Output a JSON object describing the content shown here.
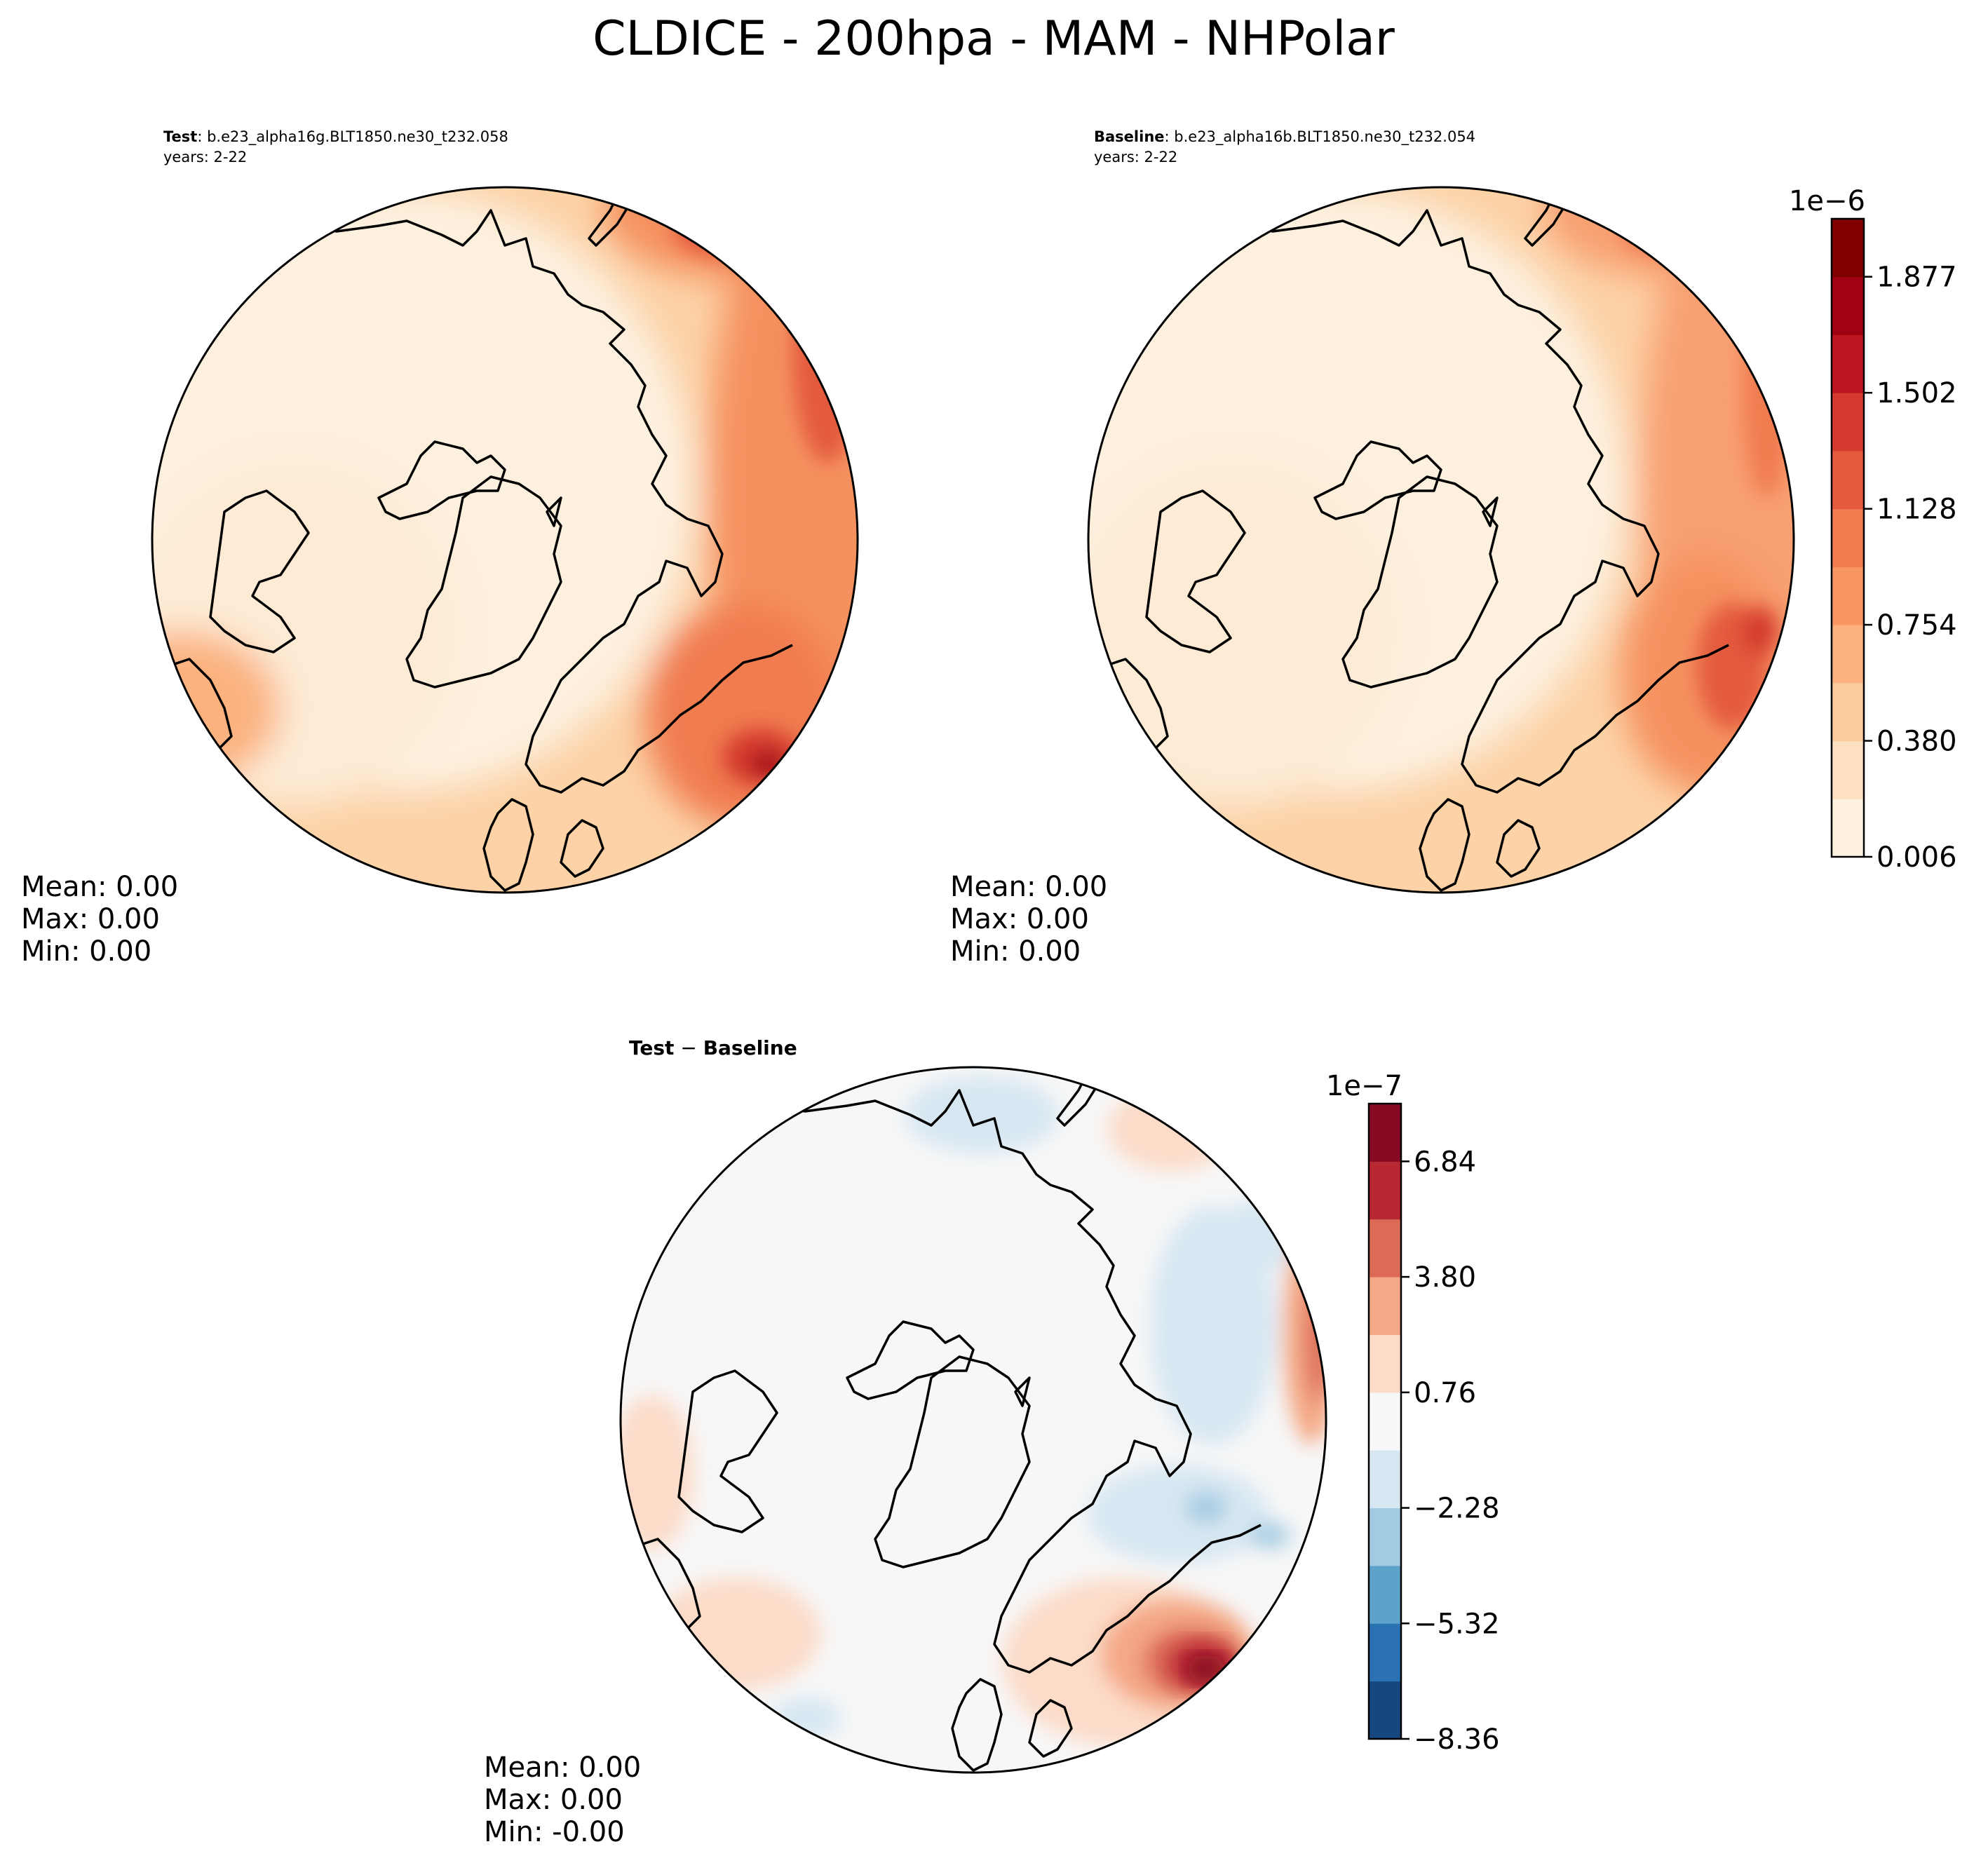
{
  "title": "CLDICE - 200hpa - MAM - NHPolar",
  "panels": [
    {
      "id": "test",
      "label_bold": "Test",
      "label_rest": ": b.e23_alpha16g.BLT1850.ne30_t232.058",
      "years": "years: 2-22",
      "stats": {
        "mean": "Mean:  0.00",
        "max": "Max:  0.00",
        "min": "Min:  0.00"
      }
    },
    {
      "id": "baseline",
      "label_bold": "Baseline",
      "label_rest": ": b.e23_alpha16b.BLT1850.ne30_t232.054",
      "years": "years: 2-22",
      "stats": {
        "mean": "Mean:  0.00",
        "max": "Max:  0.00",
        "min": "Min:  0.00"
      }
    },
    {
      "id": "diff",
      "label_bold": "Test",
      "label_op": " − ",
      "label_bold2": "Baseline",
      "stats": {
        "mean": "Mean:  0.00",
        "max": "Max:  0.00",
        "min": "Min: -0.00"
      }
    }
  ],
  "colorbars": {
    "top": {
      "exponent": "1e−6",
      "ticks": [
        "0.006",
        "0.380",
        "0.754",
        "1.128",
        "1.502",
        "1.877"
      ],
      "colors": [
        "#fdf0df",
        "#fde0c1",
        "#fccb9c",
        "#fbb27f",
        "#f79663",
        "#f07b4f",
        "#e45a3d",
        "#d43a2f",
        "#bd1621",
        "#a10212",
        "#800000"
      ]
    },
    "bottom": {
      "exponent": "1e−7",
      "ticks": [
        "−8.36",
        "−5.32",
        "−2.28",
        "0.76",
        "3.80",
        "6.84"
      ],
      "colors": [
        "#16477f",
        "#2a72b2",
        "#5da2cb",
        "#a2cbe2",
        "#d7e7f2",
        "#f7f7f7",
        "#fcdbc8",
        "#f4a885",
        "#dc6b56",
        "#b82833",
        "#870a24"
      ]
    }
  },
  "chart_data": {
    "type": "heatmap",
    "variable": "CLDICE",
    "level": "200hpa",
    "season": "MAM",
    "region": "NHPolar",
    "fields": [
      {
        "name": "Test",
        "mean": 0.0,
        "max": 0.0,
        "min": 0.0,
        "scale": "1e-6"
      },
      {
        "name": "Baseline",
        "mean": 0.0,
        "max": 0.0,
        "min": 0.0,
        "scale": "1e-6"
      },
      {
        "name": "Test - Baseline",
        "mean": 0.0,
        "max": 0.0,
        "min": -0.0,
        "scale": "1e-7"
      }
    ],
    "colorbar_top_ticks": [
      0.006,
      0.38,
      0.754,
      1.128,
      1.502,
      1.877
    ],
    "colorbar_bottom_ticks": [
      -8.36,
      -5.32,
      -2.28,
      0.76,
      3.8,
      6.84
    ]
  }
}
